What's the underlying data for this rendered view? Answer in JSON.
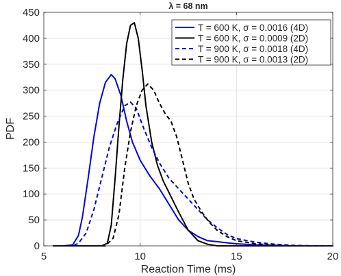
{
  "chart_data": {
    "type": "line",
    "title": "λ = 68 nm",
    "xlabel": "Reaction Time (ms)",
    "ylabel": "PDF",
    "xlim": [
      5,
      20
    ],
    "ylim": [
      0,
      450
    ],
    "xticks": [
      5,
      10,
      15,
      20
    ],
    "yticks": [
      0,
      50,
      100,
      150,
      200,
      250,
      300,
      350,
      400,
      450
    ],
    "grid": true,
    "legend_position": "top-right",
    "series": [
      {
        "name": "T = 600 K, σ = 0.0016 (4D)",
        "color": "#0000dd",
        "dash": "solid",
        "x": [
          5.5,
          6.0,
          6.5,
          6.8,
          7.0,
          7.3,
          7.6,
          7.9,
          8.2,
          8.5,
          8.7,
          9.0,
          9.3,
          9.6,
          10.0,
          10.5,
          11.0,
          11.5,
          12.0,
          12.5,
          13.0,
          13.5,
          14.0,
          14.5,
          15.0,
          16.0,
          17.0,
          18.0,
          19.0,
          20.0
        ],
        "y": [
          0,
          0,
          2,
          20,
          55,
          130,
          210,
          275,
          315,
          330,
          322,
          290,
          240,
          200,
          165,
          135,
          110,
          80,
          50,
          30,
          18,
          10,
          8,
          6,
          4,
          2,
          1,
          0,
          0,
          0
        ]
      },
      {
        "name": "T = 600 K, σ = 0.0009 (2D)",
        "color": "#000000",
        "dash": "solid",
        "x": [
          5.5,
          7.0,
          8.0,
          8.3,
          8.5,
          8.7,
          8.9,
          9.1,
          9.3,
          9.5,
          9.7,
          9.9,
          10.1,
          10.3,
          10.6,
          10.9,
          11.2,
          11.6,
          12.0,
          12.5,
          13.0,
          13.5,
          14.0,
          15.0,
          20.0
        ],
        "y": [
          0,
          0,
          0,
          5,
          40,
          130,
          230,
          320,
          390,
          425,
          430,
          400,
          340,
          270,
          200,
          155,
          125,
          95,
          65,
          30,
          10,
          3,
          0,
          0,
          0
        ]
      },
      {
        "name": "T = 900 K, σ = 0.0018 (4D)",
        "color": "#0000dd",
        "dash": "dashed",
        "x": [
          5.5,
          6.5,
          6.8,
          7.2,
          7.6,
          8.0,
          8.4,
          8.8,
          9.2,
          9.5,
          9.8,
          10.2,
          10.6,
          11.0,
          11.5,
          12.0,
          12.5,
          13.0,
          13.5,
          14.0,
          14.5,
          15.0,
          16.0,
          17.0,
          18.0,
          19.0,
          20.0
        ],
        "y": [
          0,
          0,
          5,
          25,
          70,
          130,
          190,
          235,
          270,
          277,
          265,
          225,
          190,
          160,
          130,
          110,
          90,
          70,
          50,
          35,
          22,
          14,
          7,
          3,
          1,
          0,
          0
        ]
      },
      {
        "name": "T = 900 K, σ = 0.0013 (2D)",
        "color": "#000000",
        "dash": "dashed",
        "x": [
          5.5,
          7.0,
          8.2,
          8.6,
          8.9,
          9.2,
          9.5,
          9.8,
          10.1,
          10.4,
          10.7,
          11.0,
          11.3,
          11.6,
          11.9,
          12.2,
          12.5,
          12.8,
          13.2,
          13.6,
          14.0,
          14.5,
          15.0,
          16.0,
          17.0,
          18.0,
          20.0
        ],
        "y": [
          0,
          0,
          0,
          15,
          60,
          150,
          220,
          270,
          300,
          312,
          300,
          275,
          255,
          240,
          210,
          165,
          120,
          90,
          65,
          45,
          30,
          18,
          10,
          4,
          1,
          0,
          0
        ]
      }
    ]
  }
}
